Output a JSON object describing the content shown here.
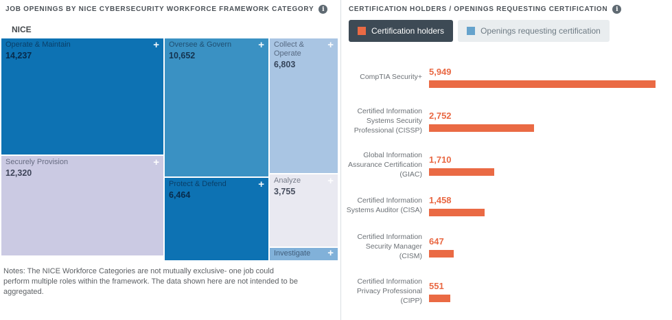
{
  "colors": {
    "bar_orange": "#EA6A44",
    "legend_blue": "#66A3CC",
    "legend_dark_button": "#3D4A55",
    "tile_dark_blue": "#0D72B3",
    "tile_medium_blue": "#3A91C3",
    "tile_light_blue": "#A9C5E3",
    "tile_lavender": "#CBCAE3",
    "tile_pale": "#E9E9F1",
    "tile_investigate_blue": "#81B1D9"
  },
  "left_panel": {
    "title": "JOB OPENINGS BY NICE CYBERSECURITY WORKFORCE FRAMEWORK CATEGORY",
    "root_label": "NICE",
    "tiles": [
      {
        "label": "Operate & Maintain",
        "value": "14,237"
      },
      {
        "label": "Securely Provision",
        "value": "12,320"
      },
      {
        "label": "Oversee & Govern",
        "value": "10,652"
      },
      {
        "label": "Protect & Defend",
        "value": "6,464"
      },
      {
        "label": "Collect & Operate",
        "value": "6,803"
      },
      {
        "label": "Analyze",
        "value": "3,755"
      },
      {
        "label": "Investigate",
        "value": ""
      }
    ],
    "expand_glyph": "+",
    "notes": "Notes: The NICE Workforce Categories are not mutually exclusive- one job could perform multiple roles within the framework. The data shown here are not intended to be aggregated."
  },
  "right_panel": {
    "title": "CERTIFICATION HOLDERS / OPENINGS REQUESTING CERTIFICATION",
    "legend": [
      {
        "label": "Certification holders"
      },
      {
        "label": "Openings requesting certification"
      }
    ],
    "rows": [
      {
        "label": "CompTIA Security+",
        "display": "5,949",
        "value": 5949
      },
      {
        "label": "Certified Information Systems Security Professional (CISSP)",
        "display": "2,752",
        "value": 2752
      },
      {
        "label": "Global Information Assurance Certification (GIAC)",
        "display": "1,710",
        "value": 1710
      },
      {
        "label": "Certified Information Systems Auditor (CISA)",
        "display": "1,458",
        "value": 1458
      },
      {
        "label": "Certified Information Security Manager (CISM)",
        "display": "647",
        "value": 647
      },
      {
        "label": "Certified Information Privacy Professional (CIPP)",
        "display": "551",
        "value": 551
      }
    ],
    "info_glyph": "i"
  },
  "chart_data": [
    {
      "type": "treemap",
      "title": "JOB OPENINGS BY NICE CYBERSECURITY WORKFORCE FRAMEWORK CATEGORY",
      "root": "NICE",
      "categories": [
        "Operate & Maintain",
        "Securely Provision",
        "Oversee & Govern",
        "Protect & Defend",
        "Collect & Operate",
        "Analyze",
        "Investigate"
      ],
      "values": [
        14237,
        12320,
        10652,
        6464,
        6803,
        3755,
        null
      ],
      "note": "Investigate tile value not visible (truncated strip)",
      "annotations": "Notes: The NICE Workforce Categories are not mutually exclusive- one job could perform multiple roles within the framework. The data shown here are not intended to be aggregated."
    },
    {
      "type": "bar",
      "orientation": "horizontal",
      "title": "CERTIFICATION HOLDERS / OPENINGS REQUESTING CERTIFICATION",
      "categories": [
        "CompTIA Security+",
        "Certified Information Systems Security Professional (CISSP)",
        "Global Information Assurance Certification (GIAC)",
        "Certified Information Systems Auditor (CISA)",
        "Certified Information Security Manager (CISM)",
        "Certified Information Privacy Professional (CIPP)"
      ],
      "series": [
        {
          "name": "Certification holders",
          "color": "#EA6A44",
          "values": [
            5949,
            2752,
            1710,
            1458,
            647,
            551
          ]
        },
        {
          "name": "Openings requesting certification",
          "color": "#66A3CC",
          "values": []
        }
      ],
      "legend_position": "top",
      "grid": false,
      "xlim": [
        0,
        5949
      ],
      "data_labels": true
    }
  ]
}
